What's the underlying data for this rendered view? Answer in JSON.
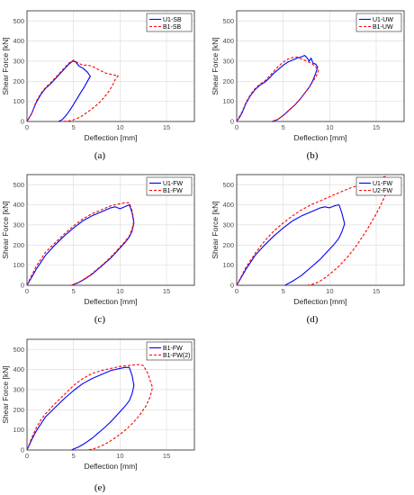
{
  "colors": {
    "series1": "#0000ff",
    "series2": "#ff0000",
    "axes": "#262626",
    "grid": "#d9d9d9"
  },
  "chart_data": [
    {
      "type": "line",
      "caption": "(a)",
      "xlabel": "Deflection [mm]",
      "ylabel": "Shear Force [kN]",
      "xlim": [
        0,
        18
      ],
      "ylim": [
        0,
        550
      ],
      "xticks": [
        "0",
        "5",
        "10",
        "15"
      ],
      "yticks": [
        "0",
        "100",
        "200",
        "300",
        "400",
        "500"
      ],
      "grid": true,
      "legend": "top-right",
      "series": [
        {
          "name": "U1-SB",
          "style": "solid",
          "x": [
            0,
            0.5,
            1,
            1.5,
            2,
            2.5,
            3,
            3.5,
            4,
            4.5,
            4.9,
            5.2,
            5.6,
            6,
            6.5,
            6.8,
            6.5,
            6.2,
            5.8,
            5.4,
            5,
            4.6,
            4.2,
            3.8,
            3.4
          ],
          "y": [
            0,
            40,
            95,
            135,
            165,
            185,
            210,
            235,
            260,
            285,
            300,
            298,
            275,
            265,
            245,
            225,
            200,
            175,
            145,
            115,
            85,
            55,
            30,
            10,
            0
          ]
        },
        {
          "name": "B1-SB",
          "style": "dashed",
          "x": [
            0,
            0.5,
            1,
            1.5,
            2,
            2.5,
            3,
            3.5,
            4,
            4.5,
            5,
            5.5,
            6,
            6.5,
            7,
            7.5,
            8,
            8.5,
            9,
            9.5,
            9.8,
            9.5,
            9.2,
            8.8,
            8.3,
            7.8,
            7.2,
            6.6,
            6,
            5.4,
            4.8,
            4.3,
            3.8
          ],
          "y": [
            0,
            40,
            100,
            140,
            170,
            190,
            215,
            240,
            265,
            290,
            305,
            290,
            280,
            280,
            275,
            262,
            250,
            240,
            235,
            230,
            228,
            210,
            180,
            150,
            120,
            95,
            70,
            50,
            30,
            15,
            5,
            2,
            0
          ]
        }
      ]
    },
    {
      "type": "line",
      "caption": "(b)",
      "xlabel": "Deflection [mm]",
      "ylabel": "Shear Force [kN]",
      "xlim": [
        0,
        18
      ],
      "ylim": [
        0,
        550
      ],
      "xticks": [
        "0",
        "5",
        "10",
        "15"
      ],
      "yticks": [
        "0",
        "100",
        "200",
        "300",
        "400",
        "500"
      ],
      "grid": true,
      "legend": "top-right",
      "series": [
        {
          "name": "U1-UW",
          "style": "solid",
          "x": [
            0,
            0.3,
            0.6,
            1,
            1.5,
            2,
            2.5,
            3,
            3.5,
            4,
            4.5,
            5,
            5.5,
            6,
            6.5,
            7,
            7.3,
            7.5,
            7.8,
            8,
            8.2,
            8.5,
            8.7,
            8.5,
            8.2,
            7.8,
            7.3,
            6.8,
            6.2,
            5.6,
            5,
            4.4,
            3.8
          ],
          "y": [
            0,
            20,
            45,
            90,
            130,
            160,
            180,
            195,
            215,
            240,
            260,
            280,
            295,
            305,
            315,
            322,
            328,
            320,
            300,
            315,
            290,
            285,
            270,
            240,
            205,
            170,
            140,
            110,
            80,
            55,
            30,
            10,
            0
          ]
        },
        {
          "name": "B1-UW",
          "style": "dashed",
          "x": [
            0,
            0.3,
            0.6,
            1,
            1.5,
            2,
            2.5,
            3,
            3.5,
            4,
            4.5,
            5,
            5.5,
            6,
            6.5,
            7,
            7.5,
            8,
            8.3,
            8.6,
            8.8,
            8.6,
            8.2,
            7.8,
            7.3,
            6.8,
            6.2,
            5.6,
            5,
            4.4,
            3.8
          ],
          "y": [
            0,
            25,
            50,
            95,
            135,
            165,
            185,
            200,
            225,
            250,
            275,
            295,
            310,
            318,
            320,
            310,
            300,
            290,
            280,
            265,
            255,
            230,
            200,
            170,
            140,
            110,
            80,
            55,
            30,
            10,
            0
          ]
        }
      ]
    },
    {
      "type": "line",
      "caption": "(c)",
      "xlabel": "Deflection [mm]",
      "ylabel": "Shear Force [kN]",
      "xlim": [
        0,
        18
      ],
      "ylim": [
        0,
        550
      ],
      "xticks": [
        "0",
        "5",
        "10",
        "15"
      ],
      "yticks": [
        "0",
        "100",
        "200",
        "300",
        "400",
        "500"
      ],
      "grid": true,
      "legend": "top-right",
      "series": [
        {
          "name": "U1-FW",
          "style": "solid",
          "x": [
            0,
            0.5,
            1,
            1.5,
            2,
            3,
            4,
            5,
            6,
            7,
            8,
            9,
            9.5,
            10,
            10.5,
            11,
            11.3,
            11.5,
            11.3,
            11,
            10.5,
            10,
            9.5,
            9,
            8.5,
            8,
            7.5,
            7,
            6.5,
            6,
            5.5,
            5,
            4.8
          ],
          "y": [
            0,
            40,
            80,
            115,
            150,
            200,
            245,
            285,
            320,
            345,
            365,
            385,
            390,
            380,
            390,
            400,
            360,
            310,
            270,
            240,
            210,
            185,
            160,
            135,
            115,
            95,
            75,
            55,
            40,
            25,
            12,
            4,
            0
          ]
        },
        {
          "name": "B1-FW",
          "style": "dashed",
          "x": [
            0,
            0.5,
            1,
            1.5,
            2,
            3,
            4,
            5,
            6,
            7,
            8,
            9,
            9.5,
            10,
            10.5,
            11,
            11.3,
            11.5,
            11.3,
            11,
            10.5,
            10,
            9.5,
            9,
            8.5,
            8,
            7.5,
            7,
            6.5,
            6,
            5.5,
            5,
            4.8
          ],
          "y": [
            0,
            50,
            95,
            130,
            165,
            210,
            255,
            295,
            330,
            355,
            375,
            395,
            400,
            405,
            410,
            410,
            370,
            320,
            280,
            245,
            215,
            190,
            165,
            140,
            118,
            98,
            78,
            58,
            42,
            27,
            14,
            5,
            0
          ]
        }
      ]
    },
    {
      "type": "line",
      "caption": "(d)",
      "xlabel": "Deflection [mm]",
      "ylabel": "Shear Force [kN]",
      "xlim": [
        0,
        18
      ],
      "ylim": [
        0,
        550
      ],
      "xticks": [
        "0",
        "5",
        "10",
        "15"
      ],
      "yticks": [
        "0",
        "100",
        "200",
        "300",
        "400",
        "500"
      ],
      "grid": true,
      "legend": "top-right",
      "series": [
        {
          "name": "U1-FW",
          "style": "solid",
          "x": [
            0,
            0.5,
            1,
            1.5,
            2,
            3,
            4,
            5,
            6,
            7,
            8,
            9,
            9.5,
            10,
            10.5,
            11,
            11.3,
            11.6,
            11.3,
            11,
            10.5,
            10,
            9.5,
            9,
            8.5,
            8,
            7.5,
            7,
            6.5,
            6,
            5.5,
            5.2
          ],
          "y": [
            0,
            40,
            80,
            115,
            150,
            200,
            245,
            285,
            320,
            345,
            365,
            385,
            390,
            385,
            395,
            400,
            360,
            305,
            265,
            235,
            205,
            180,
            155,
            130,
            110,
            90,
            70,
            50,
            35,
            20,
            8,
            0
          ]
        },
        {
          "name": "U2-FW",
          "style": "dashed",
          "x": [
            0,
            0.5,
            1,
            2,
            3,
            4,
            5,
            6,
            7,
            8,
            9,
            10,
            11,
            12,
            13,
            14,
            15,
            15.5,
            16,
            16.5,
            16.2,
            15.5,
            15,
            14.5,
            14,
            13.5,
            13,
            12.5,
            12,
            11.5,
            11,
            10.5,
            10,
            9.5,
            9,
            8.5,
            8,
            7.6
          ],
          "y": [
            0,
            45,
            90,
            160,
            220,
            270,
            310,
            345,
            375,
            400,
            420,
            440,
            460,
            480,
            495,
            510,
            525,
            535,
            540,
            510,
            470,
            400,
            355,
            315,
            275,
            240,
            205,
            175,
            145,
            120,
            95,
            75,
            55,
            38,
            22,
            10,
            3,
            0
          ]
        }
      ]
    },
    {
      "type": "line",
      "caption": "(e)",
      "xlabel": "Deflection [mm]",
      "ylabel": "Shear Force [kN]",
      "xlim": [
        0,
        18
      ],
      "ylim": [
        0,
        550
      ],
      "xticks": [
        "0",
        "5",
        "10",
        "15"
      ],
      "yticks": [
        "0",
        "100",
        "200",
        "300",
        "400",
        "500"
      ],
      "grid": true,
      "legend": "top-right",
      "series": [
        {
          "name": "B1-FW",
          "style": "solid",
          "x": [
            0,
            0.5,
            1,
            1.5,
            2,
            3,
            4,
            5,
            6,
            7,
            8,
            9,
            9.5,
            10,
            10.5,
            11,
            11.3,
            11.5,
            11.3,
            11,
            10.5,
            10,
            9.5,
            9,
            8.5,
            8,
            7.5,
            7,
            6.5,
            6,
            5.5,
            5,
            4.8
          ],
          "y": [
            0,
            50,
            95,
            130,
            165,
            210,
            255,
            295,
            330,
            355,
            375,
            395,
            400,
            405,
            410,
            410,
            370,
            320,
            280,
            245,
            215,
            190,
            165,
            140,
            118,
            98,
            78,
            58,
            42,
            27,
            14,
            5,
            0
          ]
        },
        {
          "name": "B1-FW(2)",
          "style": "dashed",
          "x": [
            0,
            0.5,
            1,
            1.5,
            2,
            3,
            4,
            5,
            6,
            7,
            8,
            9,
            10,
            11,
            12,
            12.5,
            13,
            13.5,
            13.2,
            12.8,
            12.3,
            11.8,
            11.2,
            10.6,
            10,
            9.4,
            8.8,
            8.2,
            7.6,
            7,
            6.5
          ],
          "y": [
            0,
            60,
            110,
            150,
            180,
            230,
            275,
            320,
            355,
            380,
            395,
            405,
            415,
            420,
            425,
            420,
            380,
            310,
            260,
            220,
            185,
            155,
            125,
            100,
            78,
            58,
            40,
            25,
            12,
            4,
            0
          ]
        }
      ]
    }
  ]
}
